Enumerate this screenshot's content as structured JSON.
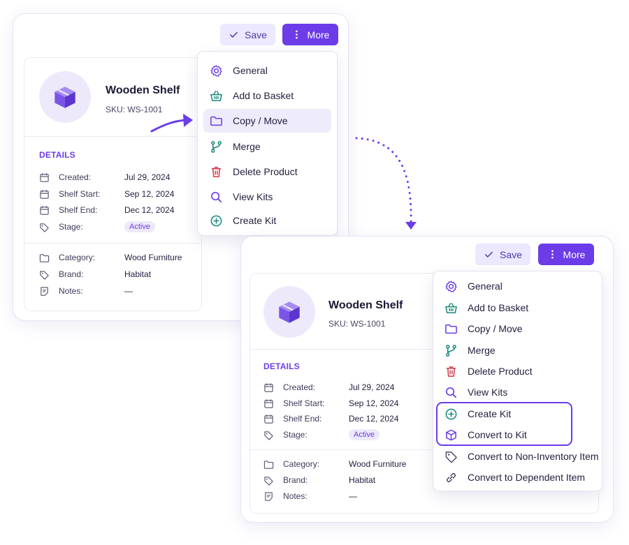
{
  "colors": {
    "accent": "#6c3ce9",
    "accent_soft": "#ede9fb",
    "teal": "#17877c",
    "red": "#d63a4a"
  },
  "toolbar": {
    "save_label": "Save",
    "more_label": "More"
  },
  "product": {
    "title": "Wooden Shelf",
    "sku": "SKU: WS-1001",
    "icon": "box-icon"
  },
  "details": {
    "heading": "DETAILS",
    "rows": [
      {
        "label": "Created:",
        "value": "Jul 29, 2024",
        "icon": "calendar-icon"
      },
      {
        "label": "Shelf Start:",
        "value": "Sep 12, 2024",
        "icon": "calendar-icon"
      },
      {
        "label": "Shelf End:",
        "value": "Dec 12, 2024",
        "icon": "calendar-icon"
      },
      {
        "label": "Stage:",
        "value": "Active",
        "icon": "tag-icon"
      }
    ],
    "meta": [
      {
        "label": "Category:",
        "value": "Wood Furniture",
        "icon": "folder-icon"
      },
      {
        "label": "Brand:",
        "value": "Habitat",
        "icon": "tag-icon"
      },
      {
        "label": "Notes:",
        "value": "—",
        "icon": "note-icon"
      }
    ]
  },
  "menu_before": [
    {
      "label": "General",
      "icon": "gear-icon"
    },
    {
      "label": "Add to Basket",
      "icon": "basket-icon"
    },
    {
      "label": "Copy / Move",
      "icon": "folder-icon",
      "highlighted": true
    },
    {
      "label": "Merge",
      "icon": "merge-icon"
    },
    {
      "label": "Delete Product",
      "icon": "trash-icon"
    },
    {
      "label": "View Kits",
      "icon": "search-icon"
    },
    {
      "label": "Create Kit",
      "icon": "plus-circle-icon"
    }
  ],
  "menu_after": [
    {
      "label": "General",
      "icon": "gear-icon"
    },
    {
      "label": "Add to Basket",
      "icon": "basket-icon"
    },
    {
      "label": "Copy / Move",
      "icon": "folder-icon"
    },
    {
      "label": "Merge",
      "icon": "merge-icon"
    },
    {
      "label": "Delete Product",
      "icon": "trash-icon"
    },
    {
      "label": "View Kits",
      "icon": "search-icon"
    },
    {
      "label": "Create Kit",
      "icon": "plus-circle-icon",
      "boxed": true
    },
    {
      "label": "Convert to Kit",
      "icon": "box-icon",
      "boxed": true
    },
    {
      "label": "Convert to Non-Inventory Item",
      "icon": "tag-icon"
    },
    {
      "label": "Convert to Dependent Item",
      "icon": "link-icon"
    }
  ]
}
